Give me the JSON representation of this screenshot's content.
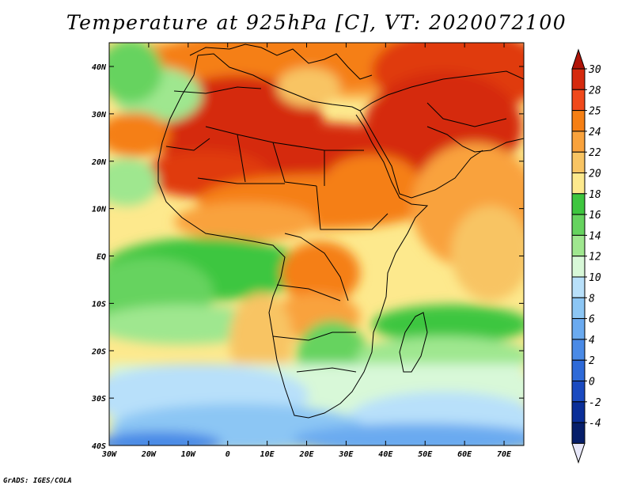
{
  "title": "Temperature at 925hPa [C], VT: 2020072100",
  "credit": "GrADS: IGES/COLA",
  "map": {
    "projection": "latlon",
    "lon_range": [
      -30,
      75
    ],
    "lat_range": [
      -40,
      45
    ],
    "lon_ticks": [
      "30W",
      "20W",
      "10W",
      "0",
      "10E",
      "20E",
      "30E",
      "40E",
      "50E",
      "60E",
      "70E"
    ],
    "lat_ticks": [
      "40N",
      "30N",
      "20N",
      "10N",
      "EQ",
      "10S",
      "20S",
      "30S",
      "40S"
    ],
    "field": "temperature_925hPa",
    "units": "C",
    "valid_time": "2020072100"
  },
  "colorbar": {
    "labels": [
      "30",
      "28",
      "25",
      "24",
      "22",
      "20",
      "18",
      "16",
      "14",
      "12",
      "10",
      "8",
      "6",
      "4",
      "2",
      "0",
      "-2",
      "-4"
    ],
    "colors": [
      "#d52a0e",
      "#f0491b",
      "#f57f14",
      "#f9a23c",
      "#f8c463",
      "#fde98d",
      "#3ec63f",
      "#66d35f",
      "#9fe78f",
      "#d8f8d8",
      "#b8e0fa",
      "#8cc6f4",
      "#6aaaf0",
      "#4a8ae6",
      "#2e6ad8",
      "#1a4ac0",
      "#0a2e98",
      "#061e6a"
    ],
    "top_arrow_color": "#b01408",
    "bottom_arrow_color": "#e8e8fa"
  }
}
